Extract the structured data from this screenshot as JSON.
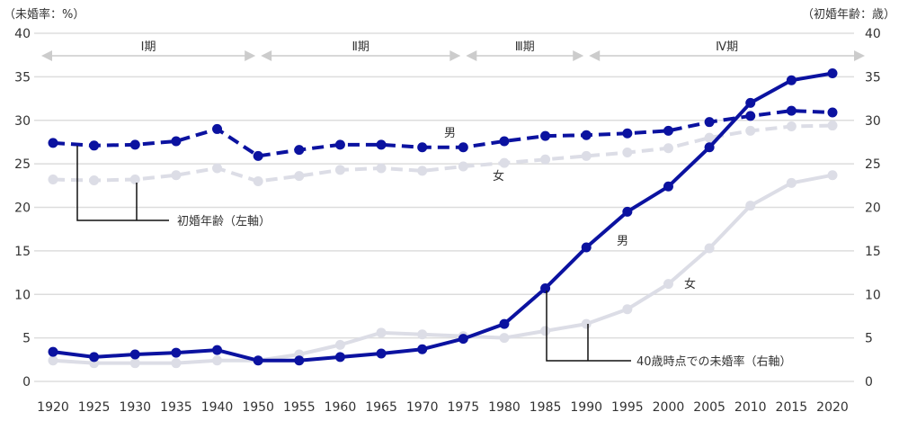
{
  "chart_data": {
    "type": "line",
    "left_axis_unit": "（未婚率：%）",
    "right_axis_unit": "（初婚年齢：歳）",
    "ylim": [
      0,
      40
    ],
    "yticks": [
      0,
      5,
      10,
      15,
      20,
      25,
      30,
      35,
      40
    ],
    "grid": true,
    "categories": [
      "1920",
      "1925",
      "1930",
      "1935",
      "1940",
      "1950",
      "1955",
      "1960",
      "1965",
      "1970",
      "1975",
      "1980",
      "1985",
      "1990",
      "1995",
      "2000",
      "2005",
      "2010",
      "2015",
      "2020"
    ],
    "periods": [
      {
        "label": "Ⅰ期",
        "from": "1920",
        "to": "1950"
      },
      {
        "label": "Ⅱ期",
        "from": "1950",
        "to": "1975"
      },
      {
        "label": "Ⅲ期",
        "from": "1975",
        "to": "1990"
      },
      {
        "label": "Ⅳ期",
        "from": "1990",
        "to": "2020"
      }
    ],
    "series": [
      {
        "name": "男",
        "group": "初婚年齢（左軸）",
        "style": "dashed",
        "color": "#0b12a0",
        "values": [
          27.4,
          27.1,
          27.2,
          27.6,
          29.0,
          25.9,
          26.6,
          27.2,
          27.2,
          26.9,
          26.9,
          27.6,
          28.2,
          28.3,
          28.5,
          28.8,
          29.8,
          30.5,
          31.1,
          30.9
        ]
      },
      {
        "name": "女",
        "group": "初婚年齢（左軸）",
        "style": "dashed",
        "color": "#dcdde6",
        "values": [
          23.2,
          23.1,
          23.2,
          23.7,
          24.5,
          23.0,
          23.6,
          24.3,
          24.5,
          24.2,
          24.7,
          25.1,
          25.5,
          25.9,
          26.3,
          26.8,
          28.0,
          28.8,
          29.3,
          29.4
        ]
      },
      {
        "name": "男",
        "group": "40歳時点での未婚率（右軸）",
        "style": "solid",
        "color": "#0b12a0",
        "values": [
          3.4,
          2.8,
          3.1,
          3.3,
          3.6,
          2.4,
          2.4,
          2.8,
          3.2,
          3.7,
          4.9,
          6.6,
          10.7,
          15.4,
          19.5,
          22.4,
          26.9,
          32.0,
          34.6,
          35.4
        ]
      },
      {
        "name": "女",
        "group": "40歳時点での未婚率（右軸）",
        "style": "solid",
        "color": "#dcdde6",
        "values": [
          2.4,
          2.1,
          2.1,
          2.1,
          2.4,
          2.4,
          3.1,
          4.2,
          5.6,
          5.4,
          5.2,
          5.0,
          5.8,
          6.6,
          8.3,
          11.2,
          15.3,
          20.2,
          22.8,
          23.7
        ]
      }
    ],
    "annotations": {
      "age_label": "初婚年齢（左軸）",
      "rate_label": "40歳時点での未婚率（右軸）",
      "male_age_label": "男",
      "female_age_label": "女",
      "male_rate_label": "男",
      "female_rate_label": "女"
    }
  }
}
